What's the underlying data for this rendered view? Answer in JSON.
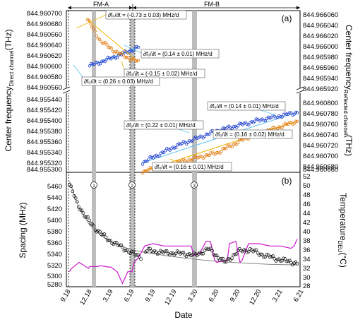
{
  "chart_data": [
    {
      "type": "scatter",
      "panel_label": "(a)",
      "xlabel": "Date",
      "ylabel_left": "Center frequency_Direct channel (THz)",
      "ylabel_right": "Center frequency_Reflected channel (THz)",
      "ylabel_left_main": "Center frequency",
      "ylabel_left_sub": "Direct channel",
      "ylabel_right_main": "Center frequency",
      "ylabel_right_sub": "Reflected channel",
      "ylabel_unit": "(THz)",
      "x_tick_labels": [
        "9.18",
        "12.18",
        "3.19",
        "6.19",
        "9.19",
        "12.19",
        "3.20",
        "6.20",
        "9.20",
        "12.20",
        "3.21",
        "6.21"
      ],
      "y_left_upper_ticks": [
        "844.960700",
        "844.960680",
        "844.960660",
        "844.960640",
        "844.960620",
        "844.960600",
        "844.960580",
        "844.960560"
      ],
      "y_left_lower_ticks": [
        "844.955440",
        "844.955420",
        "844.955400",
        "844.955380",
        "844.955360",
        "844.955340",
        "844.955320",
        "844.955300"
      ],
      "y_right_upper_ticks": [
        "844.966060",
        "844.966040",
        "844.966020",
        "844.966000",
        "844.965980",
        "844.965960",
        "844.965940",
        "844.965920"
      ],
      "y_right_lower_ticks": [
        "844.960800",
        "844.960780",
        "844.960760",
        "844.960740",
        "844.960720",
        "844.960700",
        "844.960680",
        "844.960660"
      ],
      "phase_labels": [
        "FM-A",
        "FM-B"
      ],
      "series": [
        {
          "name": "Direct channel",
          "color": "#1f3fcf",
          "segments": [
            {
              "x": [
                1.0,
                2.4,
                3.3
              ],
              "y": [
                844.960605,
                844.960625,
                844.96064
              ]
            },
            {
              "x": [
                3.5,
                5.0,
                7.0,
                9.0,
                10.8
              ],
              "y": [
                844.955325,
                844.955355,
                844.955385,
                844.955405,
                844.95542
              ]
            }
          ]
        },
        {
          "name": "Reflected channel",
          "color": "#e07b10",
          "segments": [
            {
              "x": [
                0.9,
                1.5,
                2.2,
                2.7,
                3.3
              ],
              "y": [
                844.966055,
                844.966015,
                844.965995,
                844.965985,
                844.965975
              ]
            },
            {
              "x": [
                3.5,
                5.0,
                6.0,
                7.0,
                8.5,
                10.8
              ],
              "y": [
                844.960675,
                844.96069,
                844.9607,
                844.96071,
                844.96074,
                844.96077
              ]
            }
          ]
        }
      ],
      "annotations": [
        {
          "text": "∂f₀/∂t = (-0.73 ± 0.03) MHz/d"
        },
        {
          "text": "∂f₀/∂t = (0.14 ± 0.01) MHz/d"
        },
        {
          "text": "∂f₀/∂t = (-0.15 ± 0.02) MHz/d"
        },
        {
          "text": "∂f₀/∂t = (0.26 ± 0.03) MHz/d"
        },
        {
          "text": "∂f₀/∂t = (0.14 ± 0.01) MHz/d"
        },
        {
          "text": "∂f₀/∂t = (0.22 ± 0.01) MHz/d"
        },
        {
          "text": "∂f₀/∂t = (0.16 ± 0.02) MHz/d"
        },
        {
          "text": "∂f₀/∂t = (0.16 ± 0.01) MHz/d"
        }
      ]
    },
    {
      "type": "line",
      "panel_label": "(b)",
      "xlabel": "Date",
      "ylabel_left": "Spacing (MHz)",
      "ylabel_right": "Temperature_DEU (°C)",
      "ylabel_right_main": "Temperature",
      "ylabel_right_sub": "DEU",
      "ylabel_right_unit": "(°C)",
      "ylim_left": [
        5270,
        5470
      ],
      "ylim_right": [
        28,
        52
      ],
      "y_left_ticks": [
        "5460",
        "5440",
        "5420",
        "5400",
        "5380",
        "5360",
        "5340",
        "5320",
        "5300",
        "5280"
      ],
      "y_right_ticks": [
        "52",
        "50",
        "48",
        "46",
        "44",
        "42",
        "40",
        "38",
        "36",
        "34",
        "32",
        "30",
        "28"
      ],
      "event_markers": [
        "1",
        "2",
        "3"
      ],
      "series": [
        {
          "name": "Spacing",
          "color": "#000000",
          "x": [
            0.05,
            0.4,
            0.8,
            1.3,
            1.8,
            2.4,
            2.9,
            3.4,
            3.7,
            4.5,
            5.5,
            6.0,
            6.6,
            7.4,
            8.0,
            8.6,
            9.0,
            9.8,
            10.8
          ],
          "y": [
            5462,
            5430,
            5405,
            5383,
            5366,
            5353,
            5342,
            5333,
            5345,
            5341,
            5339,
            5336,
            5348,
            5323,
            5343,
            5346,
            5339,
            5330,
            5322
          ]
        },
        {
          "name": "Fit",
          "color": "#909090",
          "x": [
            0.05,
            0.5,
            1.0,
            1.5,
            2.0,
            2.5,
            3.0,
            3.5,
            4.5,
            5.5,
            6.5,
            7.5,
            8.5,
            9.5,
            10.8
          ],
          "y": [
            5468,
            5420,
            5390,
            5372,
            5360,
            5352,
            5346,
            5342,
            5336,
            5331,
            5327,
            5324,
            5322,
            5320,
            5319
          ]
        },
        {
          "name": "Temperature DEU",
          "color": "#cc18cc",
          "x": [
            0.05,
            0.1,
            0.5,
            0.95,
            1.0,
            1.4,
            1.5,
            1.9,
            2.0,
            2.3,
            2.55,
            2.7,
            2.8,
            3.0,
            3.1,
            3.3,
            3.6,
            4.0,
            4.5,
            5.0,
            5.8,
            5.9,
            6.2,
            6.5,
            6.7,
            6.9,
            7.0,
            7.5,
            7.6,
            7.9,
            8.1,
            8.2,
            8.5,
            9.0,
            9.5,
            10.0,
            10.5,
            10.65,
            10.8
          ],
          "y": [
            31.5,
            32,
            33.5,
            32.2,
            32.6,
            32.6,
            32.8,
            32.5,
            32.5,
            31.5,
            29,
            30.5,
            31.5,
            31.5,
            33.5,
            34.5,
            37,
            37.5,
            37,
            37,
            37,
            35,
            35.5,
            38,
            38,
            34,
            33.5,
            34,
            37.5,
            38,
            33.5,
            34,
            37.5,
            37.5,
            37,
            37,
            36.5,
            37,
            38.5
          ]
        }
      ]
    }
  ]
}
